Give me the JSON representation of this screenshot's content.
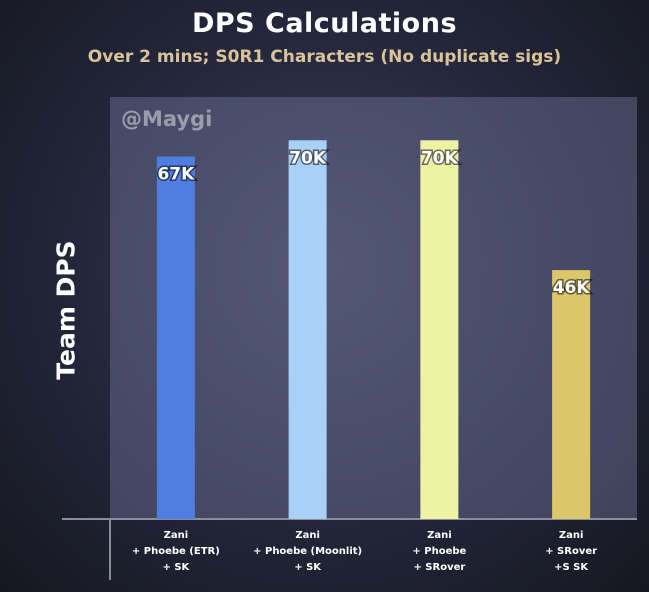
{
  "chart_data": {
    "type": "bar",
    "title": "DPS Calculations",
    "subtitle": "Over 2 mins; S0R1 Characters (No duplicate sigs)",
    "ylabel": "Team DPS",
    "xlabel": "",
    "watermark": "@Maygi",
    "ylim": [
      0,
      78
    ],
    "grid": false,
    "categories": [
      [
        "Zani",
        "+ Phoebe (ETR)",
        "+ SK"
      ],
      [
        "Zani",
        "+ Phoebe (Moonlit)",
        "+ SK"
      ],
      [
        "Zani",
        "+ Phoebe",
        "+ SRover"
      ],
      [
        "Zani",
        "+ SRover",
        "+S SK"
      ]
    ],
    "values": [
      67,
      70,
      70,
      46
    ],
    "value_labels": [
      "67K",
      "70K",
      "70K",
      "46K"
    ],
    "colors": [
      "#4f7ee0",
      "#a9d0f7",
      "#eef3a3",
      "#dcc66a"
    ]
  }
}
